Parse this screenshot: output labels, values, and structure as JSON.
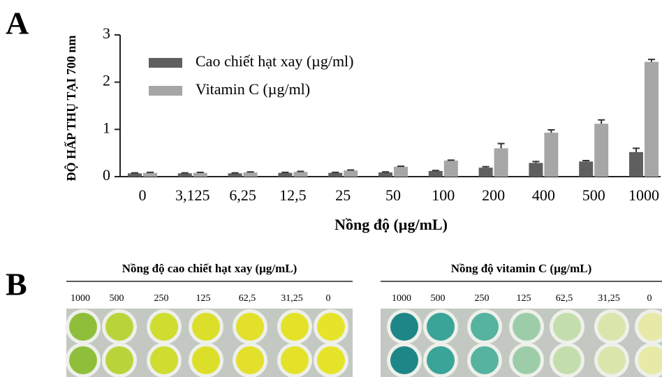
{
  "panel_a_label": "A",
  "chart_data": {
    "type": "bar",
    "ylabel": "ĐỘ HẤP THỤ TẠI 700 nm",
    "xlabel": "Nồng độ (µg/mL)",
    "categories": [
      "0",
      "3,125",
      "6,25",
      "12,5",
      "25",
      "50",
      "100",
      "200",
      "400",
      "500",
      "1000"
    ],
    "series": [
      {
        "name": "Cao chiết hạt xay (µg/ml)",
        "color": "#5f5f5f",
        "values": [
          0.07,
          0.07,
          0.07,
          0.08,
          0.08,
          0.09,
          0.12,
          0.19,
          0.29,
          0.32,
          0.52
        ],
        "errors": [
          0.01,
          0.01,
          0.01,
          0.01,
          0.01,
          0.01,
          0.01,
          0.02,
          0.03,
          0.02,
          0.08
        ]
      },
      {
        "name": "Vitamin C (µg/ml)",
        "color": "#a6a6a6",
        "values": [
          0.08,
          0.08,
          0.09,
          0.1,
          0.13,
          0.21,
          0.34,
          0.6,
          0.93,
          1.12,
          2.43
        ],
        "errors": [
          0.01,
          0.01,
          0.01,
          0.01,
          0.01,
          0.01,
          0.01,
          0.1,
          0.06,
          0.08,
          0.05
        ]
      }
    ],
    "ylim": [
      0,
      3
    ],
    "yticks": [
      0,
      1,
      2,
      3
    ]
  },
  "panel_b": {
    "label": "B",
    "plates": [
      {
        "title": "Nồng độ cao chiết hạt xay (µg/mL)",
        "concentrations": [
          "1000",
          "500",
          "250",
          "125",
          "62,5",
          "31,25",
          "0"
        ]
      },
      {
        "title": "Nồng độ vitamin C (µg/mL)",
        "concentrations": [
          "1000",
          "500",
          "250",
          "125",
          "62,5",
          "31,25",
          "0"
        ]
      }
    ]
  }
}
